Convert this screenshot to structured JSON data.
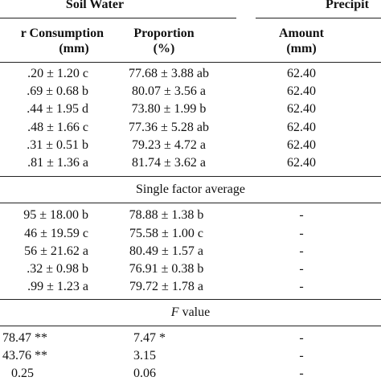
{
  "header": {
    "group_soil_water": "Soil Water",
    "group_precip": "Precipit",
    "col1_line1": "r Consumption",
    "col1_line2": "(mm)",
    "col2_line1": "Proportion",
    "col2_line2": "(%)",
    "col3_line1": "Amount",
    "col3_line2": "(mm)"
  },
  "rows_top": [
    {
      "consumption": ".20 ± 1.20 c",
      "proportion": "77.68 ± 3.88 ab",
      "amount": "62.40"
    },
    {
      "consumption": ".69 ± 0.68 b",
      "proportion": "80.07 ± 3.56 a",
      "amount": "62.40"
    },
    {
      "consumption": ".44 ± 1.95 d",
      "proportion": "73.80 ± 1.99 b",
      "amount": "62.40"
    },
    {
      "consumption": ".48 ± 1.66 c",
      "proportion": "77.36 ± 5.28 ab",
      "amount": "62.40"
    },
    {
      "consumption": ".31 ± 0.51 b",
      "proportion": "79.23 ± 4.72 a",
      "amount": "62.40"
    },
    {
      "consumption": ".81 ± 1.36 a",
      "proportion": "81.74 ± 3.62 a",
      "amount": "62.40"
    }
  ],
  "section_single": "Single factor average",
  "rows_single": [
    {
      "consumption": "95 ± 18.00 b",
      "proportion": "78.88 ± 1.38 b",
      "amount": "-"
    },
    {
      "consumption": "46 ± 19.59 c",
      "proportion": "75.58 ± 1.00 c",
      "amount": "-"
    },
    {
      "consumption": "56 ± 21.62 a",
      "proportion": "80.49 ± 1.57 a",
      "amount": "-"
    },
    {
      "consumption": ".32 ± 0.98 b",
      "proportion": "76.91 ± 0.38 b",
      "amount": "-"
    },
    {
      "consumption": ".99 ± 1.23 a",
      "proportion": "79.72 ± 1.78 a",
      "amount": "-"
    }
  ],
  "section_f": {
    "f": "F",
    "rest": " value"
  },
  "rows_f": [
    {
      "consumption": "78.47 **",
      "proportion": "7.47 *",
      "amount": "-"
    },
    {
      "consumption": "43.76 **",
      "proportion": "3.15",
      "amount": "-"
    },
    {
      "consumption": "0.25",
      "proportion": "0.06",
      "amount": "-"
    }
  ]
}
